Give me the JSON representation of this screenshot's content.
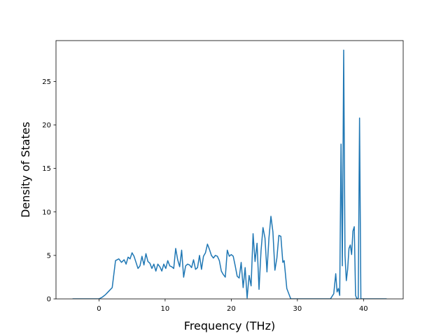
{
  "chart_data": {
    "type": "line",
    "title": "",
    "xlabel": "Frequency (THz)",
    "ylabel": "Density of States",
    "xlim": [
      -6.5,
      46
    ],
    "ylim": [
      0,
      29.7
    ],
    "xticks": [
      0,
      10,
      20,
      30,
      40
    ],
    "yticks": [
      0,
      5,
      10,
      15,
      20,
      25
    ],
    "xtick_labels": [
      "0",
      "10",
      "20",
      "30",
      "40"
    ],
    "ytick_labels": [
      "0",
      "5",
      "10",
      "15",
      "20",
      "25"
    ],
    "grid": false,
    "legend": "none",
    "series": [
      {
        "color": "#1f77b4",
        "x": [
          -4.0,
          -3.0,
          -2.0,
          -1.0,
          0.0,
          0.5,
          1.0,
          1.5,
          2.0,
          2.5,
          3.0,
          3.4,
          3.8,
          4.1,
          4.4,
          4.7,
          5.0,
          5.3,
          5.6,
          5.9,
          6.2,
          6.5,
          6.8,
          7.1,
          7.4,
          7.7,
          8.0,
          8.3,
          8.6,
          8.9,
          9.2,
          9.5,
          9.8,
          10.1,
          10.4,
          10.7,
          11.0,
          11.3,
          11.6,
          11.9,
          12.2,
          12.5,
          12.8,
          13.1,
          13.4,
          13.7,
          14.0,
          14.3,
          14.6,
          14.9,
          15.2,
          15.5,
          15.8,
          16.1,
          16.4,
          16.7,
          17.0,
          17.3,
          17.6,
          17.9,
          18.2,
          18.5,
          18.8,
          19.1,
          19.4,
          19.7,
          20.0,
          20.3,
          20.6,
          20.9,
          21.2,
          21.5,
          21.8,
          22.1,
          22.4,
          22.7,
          23.0,
          23.3,
          23.6,
          23.9,
          24.2,
          24.5,
          24.8,
          25.1,
          25.4,
          25.7,
          26.0,
          26.3,
          26.6,
          26.9,
          27.2,
          27.5,
          27.8,
          28.0,
          28.4,
          29.0,
          30.0,
          31.0,
          32.0,
          33.0,
          34.0,
          35.0,
          35.5,
          35.8,
          36.0,
          36.2,
          36.4,
          36.6,
          36.8,
          37.0,
          37.2,
          37.4,
          37.6,
          37.8,
          38.0,
          38.2,
          38.4,
          38.6,
          38.8,
          39.0,
          39.2,
          39.4,
          39.6,
          39.8,
          40.0,
          41.0,
          42.0,
          43.0,
          43.5
        ],
        "y": [
          0,
          0,
          0,
          0,
          0,
          0.2,
          0.5,
          0.9,
          1.3,
          4.4,
          4.6,
          4.2,
          4.5,
          4.0,
          4.8,
          4.6,
          5.3,
          4.9,
          4.2,
          3.5,
          3.8,
          4.9,
          3.9,
          5.2,
          4.3,
          4.1,
          3.5,
          4.0,
          3.2,
          4.0,
          3.7,
          3.2,
          4.0,
          3.5,
          4.4,
          3.8,
          3.7,
          3.5,
          5.8,
          4.5,
          3.7,
          5.6,
          2.5,
          3.8,
          4.0,
          3.9,
          3.6,
          4.5,
          3.4,
          3.6,
          5.0,
          3.4,
          4.9,
          5.3,
          6.3,
          5.7,
          5.0,
          4.7,
          5.0,
          4.9,
          4.4,
          3.2,
          2.8,
          2.5,
          5.6,
          4.9,
          5.1,
          4.9,
          3.8,
          2.6,
          2.4,
          4.2,
          1.3,
          3.6,
          0.1,
          2.7,
          1.5,
          7.5,
          4.3,
          6.4,
          1.1,
          5.5,
          8.2,
          7.0,
          3.1,
          7.0,
          9.5,
          7.7,
          3.3,
          4.7,
          7.3,
          7.2,
          4.2,
          4.4,
          1.2,
          0,
          0,
          0,
          0,
          0,
          0,
          0,
          0.6,
          2.9,
          0.8,
          1.2,
          0.4,
          17.8,
          3.8,
          28.6,
          5.0,
          2.1,
          3.4,
          5.8,
          6.2,
          5.1,
          7.8,
          8.3,
          0.4,
          0,
          0.1,
          20.8,
          0,
          0,
          0,
          0,
          0,
          0,
          0
        ]
      }
    ]
  }
}
